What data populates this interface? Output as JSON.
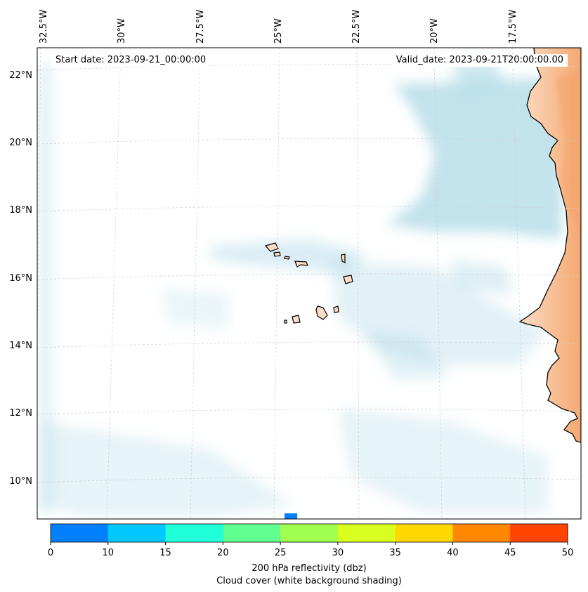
{
  "map": {
    "start_date": "Start date: 2023-09-21_00:00:00",
    "valid_date": "Valid_date: 2023-09-21T20:00:00.00",
    "lon_labels": [
      "32.5°W",
      "30°W",
      "27.5°W",
      "25°W",
      "22.5°W",
      "20°W",
      "17.5°W"
    ],
    "lat_labels": [
      "22°N",
      "20°N",
      "18°N",
      "16°N",
      "14°N",
      "12°N",
      "10°N"
    ],
    "extent": {
      "lon_min": -33.0,
      "lon_max": -15.5,
      "lat_min": 9.0,
      "lat_max": 22.8
    },
    "land_color": "#fbdcc6",
    "cloud_color": "#add8e6",
    "coast_color": "#000000"
  },
  "colorbar": {
    "colors": [
      "#0080ff",
      "#00c8ff",
      "#20ffd8",
      "#60ff90",
      "#a0ff50",
      "#d8ff20",
      "#ffd800",
      "#ff8800",
      "#ff4400"
    ],
    "ticks": [
      "0",
      "10",
      "15",
      "20",
      "25",
      "30",
      "35",
      "40",
      "45",
      "50"
    ],
    "label_line1": "200 hPa reflectivity (dbz)",
    "label_line2": "Cloud cover (white background shading)"
  }
}
